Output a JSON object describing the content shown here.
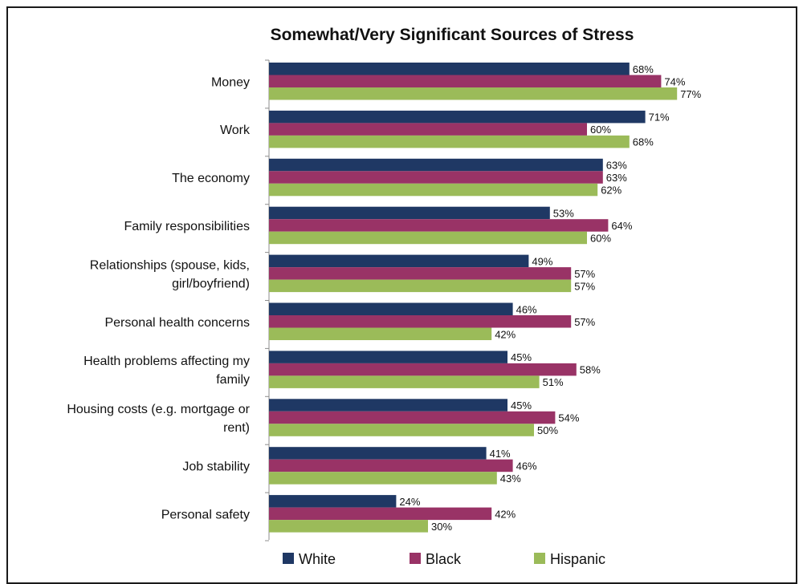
{
  "chart_data": {
    "type": "bar",
    "orientation": "horizontal",
    "title": "Somewhat/Very Significant Sources of Stress",
    "xlabel": "",
    "ylabel": "",
    "xlim": [
      0,
      80
    ],
    "grid": false,
    "legend_position": "bottom",
    "value_suffix": "%",
    "categories": [
      [
        "Money"
      ],
      [
        "Work"
      ],
      [
        "The economy"
      ],
      [
        "Family responsibilities"
      ],
      [
        "Relationships (spouse, kids,",
        "girl/boyfriend)"
      ],
      [
        "Personal health concerns"
      ],
      [
        "Health problems affecting my",
        "family"
      ],
      [
        "Housing costs (e.g. mortgage or",
        "rent)"
      ],
      [
        "Job stability"
      ],
      [
        "Personal safety"
      ]
    ],
    "series": [
      {
        "name": "White",
        "color": "#1f3864",
        "values": [
          68,
          71,
          63,
          53,
          49,
          46,
          45,
          45,
          41,
          24
        ]
      },
      {
        "name": "Black",
        "color": "#993366",
        "values": [
          74,
          60,
          63,
          64,
          57,
          57,
          58,
          54,
          46,
          42
        ]
      },
      {
        "name": "Hispanic",
        "color": "#9bbb59",
        "values": [
          77,
          68,
          62,
          60,
          57,
          42,
          51,
          50,
          43,
          30
        ]
      }
    ]
  }
}
